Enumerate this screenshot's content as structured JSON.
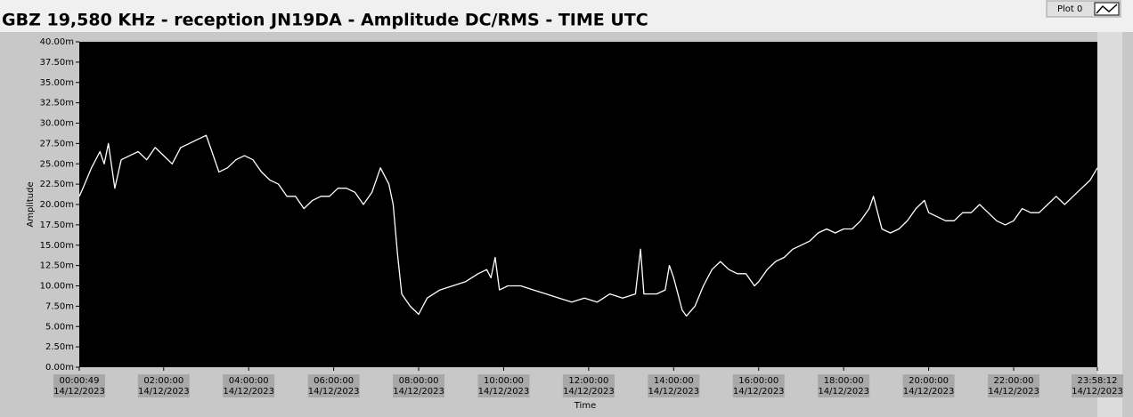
{
  "chart_data": {
    "type": "line",
    "title": "GBZ  19,580 KHz - reception JN19DA -  Amplitude DC/RMS   - TIME UTC",
    "xlabel": "Time",
    "ylabel": "Amplitude",
    "x": [
      0.0136,
      0.1,
      0.3,
      0.5,
      0.6,
      0.7,
      0.85,
      1.0,
      1.2,
      1.4,
      1.6,
      1.8,
      2.0,
      2.2,
      2.4,
      2.6,
      2.8,
      3.0,
      3.1,
      3.3,
      3.5,
      3.7,
      3.9,
      4.1,
      4.3,
      4.5,
      4.7,
      4.9,
      5.1,
      5.3,
      5.5,
      5.7,
      5.9,
      6.1,
      6.3,
      6.5,
      6.7,
      6.9,
      7.1,
      7.3,
      7.4,
      7.5,
      7.6,
      7.8,
      8.0,
      8.2,
      8.5,
      8.8,
      9.1,
      9.4,
      9.6,
      9.7,
      9.8,
      9.9,
      10.1,
      10.4,
      10.7,
      11.0,
      11.3,
      11.6,
      11.9,
      12.2,
      12.5,
      12.8,
      13.1,
      13.22,
      13.3,
      13.6,
      13.8,
      13.9,
      14.0,
      14.1,
      14.2,
      14.3,
      14.5,
      14.7,
      14.9,
      15.1,
      15.3,
      15.5,
      15.7,
      15.9,
      16.0,
      16.2,
      16.4,
      16.6,
      16.8,
      17.0,
      17.2,
      17.4,
      17.6,
      17.8,
      18.0,
      18.2,
      18.4,
      18.6,
      18.7,
      18.9,
      19.1,
      19.3,
      19.5,
      19.7,
      19.9,
      20.0,
      20.2,
      20.4,
      20.6,
      20.8,
      21.0,
      21.2,
      21.4,
      21.6,
      21.8,
      22.0,
      22.2,
      22.4,
      22.6,
      22.8,
      23.0,
      23.2,
      23.4,
      23.6,
      23.8,
      23.97
    ],
    "series": [
      {
        "name": "Plot 0",
        "color": "#ffffff",
        "values": [
          21,
          22,
          24.5,
          26.5,
          25,
          27.5,
          22,
          25.5,
          26,
          26.5,
          25.5,
          27,
          26,
          25,
          27,
          27.5,
          28,
          28.5,
          27,
          24,
          24.5,
          25.5,
          26,
          25.5,
          24,
          23,
          22.5,
          21,
          21,
          19.5,
          20.5,
          21,
          21,
          22,
          22,
          21.5,
          20,
          21.5,
          24.5,
          22.5,
          20,
          14,
          9,
          7.5,
          6.5,
          8.5,
          9.5,
          10,
          10.5,
          11.5,
          12,
          11,
          13.5,
          9.5,
          10,
          10,
          9.5,
          9,
          8.5,
          8,
          8.5,
          8,
          9,
          8.5,
          9,
          14.5,
          9,
          9,
          9.5,
          12.5,
          11,
          9,
          7,
          6.3,
          7.5,
          10,
          12,
          13,
          12,
          11.5,
          11.5,
          10,
          10.5,
          12,
          13,
          13.5,
          14.5,
          15,
          15.5,
          16.5,
          17,
          16.5,
          17,
          17,
          18,
          19.5,
          21,
          17,
          16.5,
          17,
          18,
          19.5,
          20.5,
          19,
          18.5,
          18,
          18,
          19,
          19,
          20,
          19,
          18,
          17.5,
          18,
          19.5,
          19,
          19,
          20,
          21,
          20,
          21,
          22,
          23,
          24.5
        ]
      }
    ],
    "xlim": [
      0.0136,
      23.97
    ],
    "xticks": [
      {
        "value": 0.0136,
        "label": [
          "00:00:49",
          "14/12/2023"
        ]
      },
      {
        "value": 2,
        "label": [
          "02:00:00",
          "14/12/2023"
        ]
      },
      {
        "value": 4,
        "label": [
          "04:00:00",
          "14/12/2023"
        ]
      },
      {
        "value": 6,
        "label": [
          "06:00:00",
          "14/12/2023"
        ]
      },
      {
        "value": 8,
        "label": [
          "08:00:00",
          "14/12/2023"
        ]
      },
      {
        "value": 10,
        "label": [
          "10:00:00",
          "14/12/2023"
        ]
      },
      {
        "value": 12,
        "label": [
          "12:00:00",
          "14/12/2023"
        ]
      },
      {
        "value": 14,
        "label": [
          "14:00:00",
          "14/12/2023"
        ]
      },
      {
        "value": 16,
        "label": [
          "16:00:00",
          "14/12/2023"
        ]
      },
      {
        "value": 18,
        "label": [
          "18:00:00",
          "14/12/2023"
        ]
      },
      {
        "value": 20,
        "label": [
          "20:00:00",
          "14/12/2023"
        ]
      },
      {
        "value": 22,
        "label": [
          "22:00:00",
          "14/12/2023"
        ]
      },
      {
        "value": 23.97,
        "label": [
          "23:58:12",
          "14/12/2023"
        ]
      }
    ],
    "ylim": [
      0,
      40
    ],
    "yticks": [
      {
        "value": 0,
        "label": "0.00m"
      },
      {
        "value": 2.5,
        "label": "2.50m"
      },
      {
        "value": 5,
        "label": "5.00m"
      },
      {
        "value": 7.5,
        "label": "7.50m"
      },
      {
        "value": 10,
        "label": "10.00m"
      },
      {
        "value": 12.5,
        "label": "12.50m"
      },
      {
        "value": 15,
        "label": "15.00m"
      },
      {
        "value": 17.5,
        "label": "17.50m"
      },
      {
        "value": 20,
        "label": "20.00m"
      },
      {
        "value": 22.5,
        "label": "22.50m"
      },
      {
        "value": 25,
        "label": "25.00m"
      },
      {
        "value": 27.5,
        "label": "27.50m"
      },
      {
        "value": 30,
        "label": "30.00m"
      },
      {
        "value": 32.5,
        "label": "32.50m"
      },
      {
        "value": 35,
        "label": "35.00m"
      },
      {
        "value": 37.5,
        "label": "37.50m"
      },
      {
        "value": 40,
        "label": "40.00m"
      }
    ],
    "grid": false
  }
}
